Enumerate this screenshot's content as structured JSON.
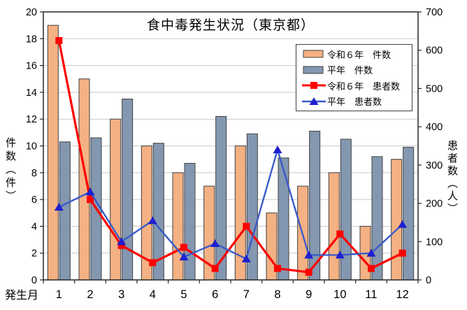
{
  "chart_data": {
    "type": "combo",
    "title": "食中毒発生状況（東京都）",
    "xlabel": "発生月",
    "ylabel_left": "件数（件）",
    "ylabel_right": "患者数（人）",
    "categories": [
      "1",
      "2",
      "3",
      "4",
      "5",
      "6",
      "7",
      "8",
      "9",
      "10",
      "11",
      "12"
    ],
    "axis_left": {
      "min": 0,
      "max": 20,
      "step": 2
    },
    "axis_right": {
      "min": 0,
      "max": 700,
      "step": 100
    },
    "grid": true,
    "legend_position": "top-right-inside",
    "series": [
      {
        "name": "令和６年　件数",
        "type": "bar",
        "axis": "left",
        "color": "#F4B183",
        "border_color": "#404040",
        "values": [
          19,
          15,
          12,
          10,
          8,
          7,
          10,
          5,
          7,
          8,
          4,
          9
        ]
      },
      {
        "name": "平年　件数",
        "type": "bar",
        "axis": "left",
        "color": "#8497B0",
        "border_color": "#404040",
        "values": [
          10.3,
          10.6,
          13.5,
          10.2,
          8.7,
          12.2,
          10.9,
          9.1,
          11.1,
          10.5,
          9.2,
          9.9
        ]
      },
      {
        "name": "令和６年　患者数",
        "type": "line",
        "axis": "right",
        "color": "#FF0000",
        "marker": "square",
        "marker_color": "#FF0000",
        "values": [
          625,
          210,
          90,
          45,
          85,
          30,
          140,
          30,
          20,
          120,
          30,
          70
        ]
      },
      {
        "name": "平年　患者数",
        "type": "line",
        "axis": "right",
        "color": "#3A5BC8",
        "marker": "triangle",
        "marker_color": "#1F1FD0",
        "values": [
          190,
          230,
          100,
          155,
          60,
          95,
          55,
          340,
          65,
          65,
          70,
          145
        ]
      }
    ],
    "colors": {
      "grid": "#C9C9C9",
      "axis": "#262626",
      "text": "#000000",
      "background": "#FFFFFF"
    }
  }
}
